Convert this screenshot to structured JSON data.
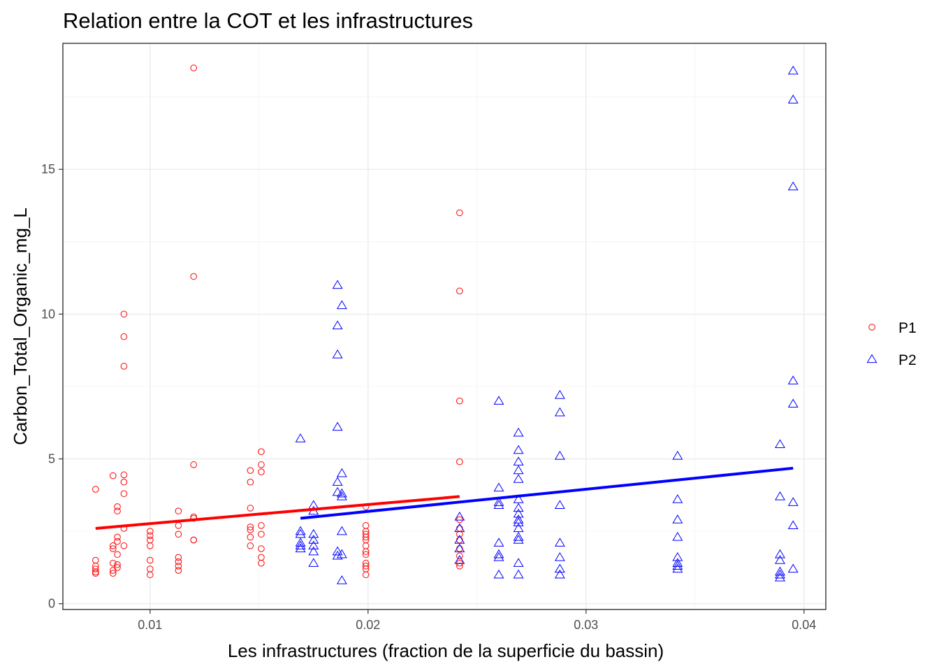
{
  "chart_data": {
    "type": "scatter",
    "title": "Relation entre la COT et les infrastructures",
    "xlabel": "Les infrastructures (fraction de la superficie du bassin)",
    "ylabel": "Carbon_Total_Organic_mg_L",
    "xlim": [
      0.006,
      0.041
    ],
    "ylim": [
      -0.2,
      19.35
    ],
    "x_ticks": [
      0.01,
      0.02,
      0.03,
      0.04
    ],
    "x_tick_labels": [
      "0.01",
      "0.02",
      "0.03",
      "0.04"
    ],
    "y_ticks": [
      0,
      5,
      10,
      15
    ],
    "y_tick_labels": [
      "0",
      "5",
      "10",
      "15"
    ],
    "grid": true,
    "legend_position": "right",
    "colors": {
      "P1": "#ff0000",
      "P2": "#0000ff"
    },
    "series": [
      {
        "name": "P1",
        "marker": "circle",
        "color": "#ff0000",
        "points": [
          [
            0.0075,
            3.95
          ],
          [
            0.0075,
            1.5
          ],
          [
            0.0075,
            1.3
          ],
          [
            0.0075,
            1.2
          ],
          [
            0.0075,
            1.1
          ],
          [
            0.0075,
            1.05
          ],
          [
            0.0083,
            4.42
          ],
          [
            0.0083,
            2.0
          ],
          [
            0.0083,
            1.9
          ],
          [
            0.0083,
            1.4
          ],
          [
            0.0083,
            1.15
          ],
          [
            0.0083,
            1.05
          ],
          [
            0.0085,
            3.35
          ],
          [
            0.0085,
            3.2
          ],
          [
            0.0085,
            2.3
          ],
          [
            0.0085,
            2.15
          ],
          [
            0.0085,
            1.7
          ],
          [
            0.0085,
            1.35
          ],
          [
            0.0085,
            1.25
          ],
          [
            0.0088,
            10.0
          ],
          [
            0.0088,
            9.22
          ],
          [
            0.0088,
            8.2
          ],
          [
            0.0088,
            4.45
          ],
          [
            0.0088,
            4.2
          ],
          [
            0.0088,
            3.8
          ],
          [
            0.0088,
            2.6
          ],
          [
            0.0088,
            2.0
          ],
          [
            0.01,
            2.5
          ],
          [
            0.01,
            2.35
          ],
          [
            0.01,
            2.2
          ],
          [
            0.01,
            2.0
          ],
          [
            0.01,
            1.5
          ],
          [
            0.01,
            1.2
          ],
          [
            0.01,
            1.0
          ],
          [
            0.0113,
            3.2
          ],
          [
            0.0113,
            2.7
          ],
          [
            0.0113,
            2.4
          ],
          [
            0.0113,
            1.6
          ],
          [
            0.0113,
            1.45
          ],
          [
            0.0113,
            1.3
          ],
          [
            0.0113,
            1.15
          ],
          [
            0.012,
            18.5
          ],
          [
            0.012,
            11.3
          ],
          [
            0.012,
            4.8
          ],
          [
            0.012,
            3.0
          ],
          [
            0.012,
            2.95
          ],
          [
            0.012,
            2.2
          ],
          [
            0.012,
            2.2
          ],
          [
            0.0146,
            4.6
          ],
          [
            0.0146,
            4.2
          ],
          [
            0.0146,
            3.3
          ],
          [
            0.0146,
            2.65
          ],
          [
            0.0146,
            2.55
          ],
          [
            0.0146,
            2.3
          ],
          [
            0.0146,
            2.0
          ],
          [
            0.0151,
            5.25
          ],
          [
            0.0151,
            4.8
          ],
          [
            0.0151,
            4.55
          ],
          [
            0.0151,
            2.7
          ],
          [
            0.0151,
            2.4
          ],
          [
            0.0151,
            1.9
          ],
          [
            0.0151,
            1.6
          ],
          [
            0.0151,
            1.4
          ],
          [
            0.0199,
            2.7
          ],
          [
            0.0199,
            2.5
          ],
          [
            0.0199,
            2.4
          ],
          [
            0.0199,
            2.3
          ],
          [
            0.0199,
            2.2
          ],
          [
            0.0199,
            2.0
          ],
          [
            0.0199,
            1.8
          ],
          [
            0.0199,
            1.7
          ],
          [
            0.0199,
            1.4
          ],
          [
            0.0199,
            1.3
          ],
          [
            0.0199,
            1.2
          ],
          [
            0.0199,
            1.0
          ],
          [
            0.0199,
            3.35
          ],
          [
            0.0242,
            13.5
          ],
          [
            0.0242,
            10.8
          ],
          [
            0.0242,
            7.0
          ],
          [
            0.0242,
            4.9
          ],
          [
            0.0242,
            2.9
          ],
          [
            0.0242,
            2.6
          ],
          [
            0.0242,
            2.4
          ],
          [
            0.0242,
            2.2
          ],
          [
            0.0242,
            1.9
          ],
          [
            0.0242,
            1.65
          ],
          [
            0.0242,
            1.4
          ],
          [
            0.0242,
            1.3
          ]
        ],
        "fit": {
          "x": [
            0.0075,
            0.0242
          ],
          "y": [
            2.6,
            3.7
          ]
        }
      },
      {
        "name": "P2",
        "marker": "triangle",
        "color": "#0000ff",
        "points": [
          [
            0.0169,
            5.7
          ],
          [
            0.0169,
            2.5
          ],
          [
            0.0169,
            2.4
          ],
          [
            0.0169,
            2.1
          ],
          [
            0.0169,
            2.0
          ],
          [
            0.0169,
            1.9
          ],
          [
            0.0175,
            3.4
          ],
          [
            0.0175,
            3.2
          ],
          [
            0.0175,
            2.4
          ],
          [
            0.0175,
            2.2
          ],
          [
            0.0175,
            2.0
          ],
          [
            0.0175,
            1.8
          ],
          [
            0.0175,
            1.4
          ],
          [
            0.0186,
            11.0
          ],
          [
            0.0186,
            9.6
          ],
          [
            0.0186,
            8.6
          ],
          [
            0.0186,
            6.1
          ],
          [
            0.0186,
            4.2
          ],
          [
            0.0186,
            3.85
          ],
          [
            0.0186,
            1.8
          ],
          [
            0.0186,
            1.65
          ],
          [
            0.0188,
            10.3
          ],
          [
            0.0188,
            4.5
          ],
          [
            0.0188,
            3.8
          ],
          [
            0.0188,
            3.7
          ],
          [
            0.0188,
            2.5
          ],
          [
            0.0188,
            1.7
          ],
          [
            0.0188,
            0.8
          ],
          [
            0.0242,
            3.0
          ],
          [
            0.0242,
            2.6
          ],
          [
            0.0242,
            2.2
          ],
          [
            0.0242,
            1.9
          ],
          [
            0.0242,
            1.5
          ],
          [
            0.026,
            7.0
          ],
          [
            0.026,
            4.0
          ],
          [
            0.026,
            3.5
          ],
          [
            0.026,
            3.4
          ],
          [
            0.026,
            2.1
          ],
          [
            0.026,
            1.7
          ],
          [
            0.026,
            1.6
          ],
          [
            0.026,
            1.0
          ],
          [
            0.0269,
            5.9
          ],
          [
            0.0269,
            5.3
          ],
          [
            0.0269,
            4.9
          ],
          [
            0.0269,
            4.6
          ],
          [
            0.0269,
            4.3
          ],
          [
            0.0269,
            3.6
          ],
          [
            0.0269,
            3.3
          ],
          [
            0.0269,
            3.1
          ],
          [
            0.0269,
            2.9
          ],
          [
            0.0269,
            2.8
          ],
          [
            0.0269,
            2.6
          ],
          [
            0.0269,
            2.3
          ],
          [
            0.0269,
            2.2
          ],
          [
            0.0269,
            1.4
          ],
          [
            0.0269,
            1.0
          ],
          [
            0.0288,
            7.2
          ],
          [
            0.0288,
            6.6
          ],
          [
            0.0288,
            5.1
          ],
          [
            0.0288,
            3.4
          ],
          [
            0.0288,
            2.1
          ],
          [
            0.0288,
            1.6
          ],
          [
            0.0288,
            1.2
          ],
          [
            0.0288,
            1.0
          ],
          [
            0.0342,
            5.1
          ],
          [
            0.0342,
            3.6
          ],
          [
            0.0342,
            2.9
          ],
          [
            0.0342,
            2.3
          ],
          [
            0.0342,
            1.6
          ],
          [
            0.0342,
            1.4
          ],
          [
            0.0342,
            1.3
          ],
          [
            0.0342,
            1.2
          ],
          [
            0.0389,
            5.5
          ],
          [
            0.0389,
            3.7
          ],
          [
            0.0389,
            1.7
          ],
          [
            0.0389,
            1.5
          ],
          [
            0.0389,
            1.1
          ],
          [
            0.0389,
            1.0
          ],
          [
            0.0389,
            0.9
          ],
          [
            0.0395,
            18.4
          ],
          [
            0.0395,
            17.4
          ],
          [
            0.0395,
            14.4
          ],
          [
            0.0395,
            7.7
          ],
          [
            0.0395,
            6.9
          ],
          [
            0.0395,
            3.5
          ],
          [
            0.0395,
            2.7
          ],
          [
            0.0395,
            1.2
          ]
        ],
        "fit": {
          "x": [
            0.0169,
            0.0395
          ],
          "y": [
            2.95,
            4.68
          ]
        }
      }
    ]
  }
}
